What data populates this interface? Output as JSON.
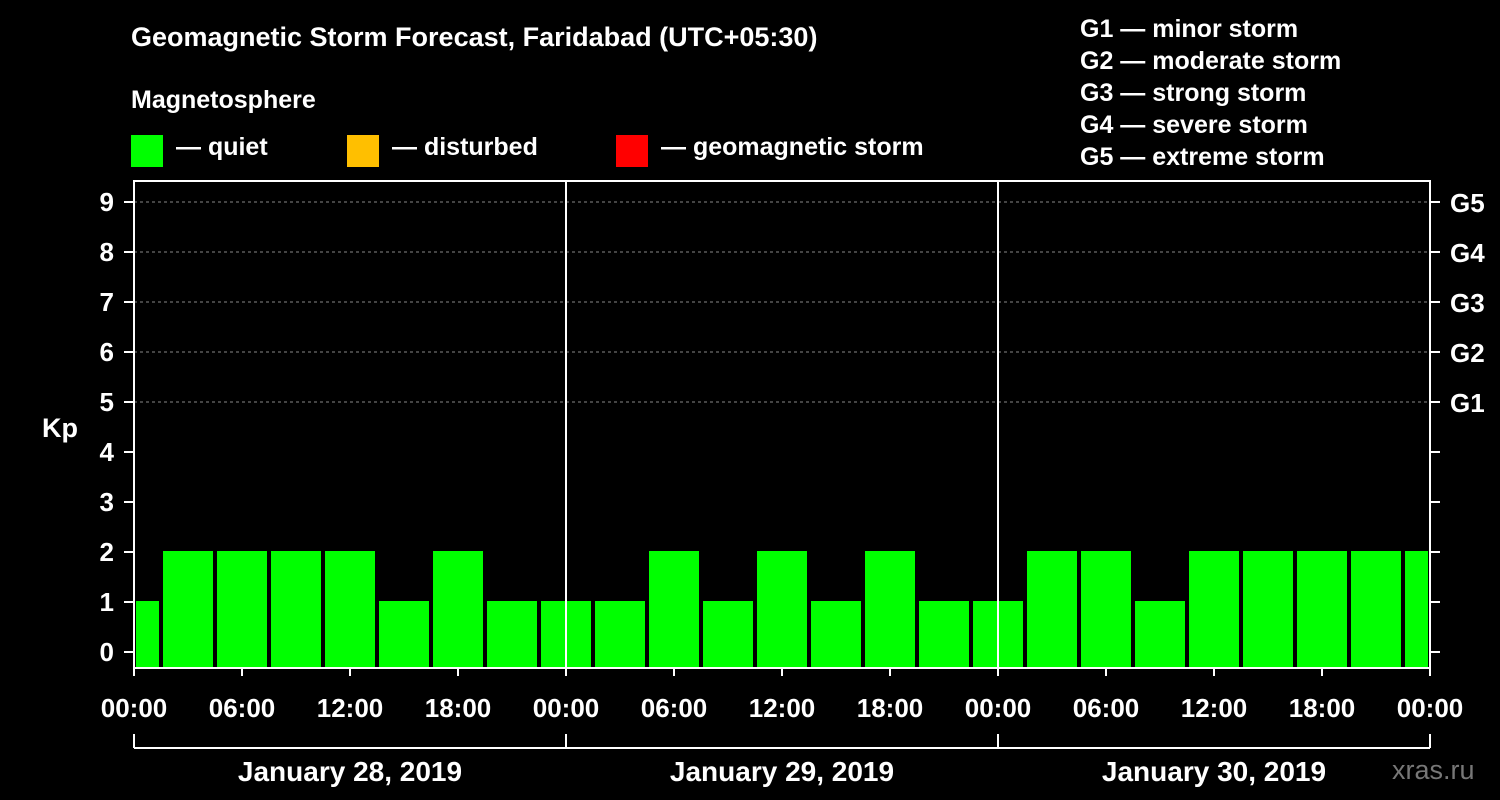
{
  "title": "Geomagnetic Storm Forecast, Faridabad (UTC+05:30)",
  "magnetosphere": {
    "heading": "Magnetosphere",
    "legend": [
      {
        "label": "— quiet",
        "color": "#00ff00"
      },
      {
        "label": "— disturbed",
        "color": "#ffbf00"
      },
      {
        "label": "— geomagnetic storm",
        "color": "#ff0000"
      }
    ]
  },
  "g_scale": [
    "G1 — minor storm",
    "G2 — moderate storm",
    "G3 — strong storm",
    "G4 — severe storm",
    "G5 — extreme storm"
  ],
  "watermark": "xras.ru",
  "chart_data": {
    "type": "bar",
    "title": "Geomagnetic Storm Forecast, Faridabad (UTC+05:30)",
    "ylabel": "Kp",
    "ylim": [
      0,
      9
    ],
    "yticks": [
      "0",
      "1",
      "2",
      "3",
      "4",
      "5",
      "6",
      "7",
      "8",
      "9"
    ],
    "right_axis": [
      {
        "kp": 5,
        "label": "G1"
      },
      {
        "kp": 6,
        "label": "G2"
      },
      {
        "kp": 7,
        "label": "G3"
      },
      {
        "kp": 8,
        "label": "G4"
      },
      {
        "kp": 9,
        "label": "G5"
      }
    ],
    "x_range_hours": [
      0,
      72
    ],
    "xtick_labels": [
      "00:00",
      "06:00",
      "12:00",
      "18:00",
      "00:00",
      "06:00",
      "12:00",
      "18:00",
      "00:00",
      "06:00",
      "12:00",
      "18:00",
      "00:00"
    ],
    "xtick_hours": [
      0,
      6,
      12,
      18,
      24,
      30,
      36,
      42,
      48,
      54,
      60,
      66,
      72
    ],
    "days": [
      "January 28, 2019",
      "January 29, 2019",
      "January 30, 2019"
    ],
    "grid": "dashed at Kp 5-9",
    "bars": [
      {
        "start": 0,
        "end": 1.5,
        "kp": 1,
        "status": "quiet"
      },
      {
        "start": 1.5,
        "end": 4.5,
        "kp": 2,
        "status": "quiet"
      },
      {
        "start": 4.5,
        "end": 7.5,
        "kp": 2,
        "status": "quiet"
      },
      {
        "start": 7.5,
        "end": 10.5,
        "kp": 2,
        "status": "quiet"
      },
      {
        "start": 10.5,
        "end": 13.5,
        "kp": 2,
        "status": "quiet"
      },
      {
        "start": 13.5,
        "end": 16.5,
        "kp": 1,
        "status": "quiet"
      },
      {
        "start": 16.5,
        "end": 19.5,
        "kp": 2,
        "status": "quiet"
      },
      {
        "start": 19.5,
        "end": 22.5,
        "kp": 1,
        "status": "quiet"
      },
      {
        "start": 22.5,
        "end": 25.5,
        "kp": 1,
        "status": "quiet"
      },
      {
        "start": 25.5,
        "end": 28.5,
        "kp": 1,
        "status": "quiet"
      },
      {
        "start": 28.5,
        "end": 31.5,
        "kp": 2,
        "status": "quiet"
      },
      {
        "start": 31.5,
        "end": 34.5,
        "kp": 1,
        "status": "quiet"
      },
      {
        "start": 34.5,
        "end": 37.5,
        "kp": 2,
        "status": "quiet"
      },
      {
        "start": 37.5,
        "end": 40.5,
        "kp": 1,
        "status": "quiet"
      },
      {
        "start": 40.5,
        "end": 43.5,
        "kp": 2,
        "status": "quiet"
      },
      {
        "start": 43.5,
        "end": 46.5,
        "kp": 1,
        "status": "quiet"
      },
      {
        "start": 46.5,
        "end": 49.5,
        "kp": 1,
        "status": "quiet"
      },
      {
        "start": 49.5,
        "end": 52.5,
        "kp": 2,
        "status": "quiet"
      },
      {
        "start": 52.5,
        "end": 55.5,
        "kp": 2,
        "status": "quiet"
      },
      {
        "start": 55.5,
        "end": 58.5,
        "kp": 1,
        "status": "quiet"
      },
      {
        "start": 58.5,
        "end": 61.5,
        "kp": 2,
        "status": "quiet"
      },
      {
        "start": 61.5,
        "end": 64.5,
        "kp": 2,
        "status": "quiet"
      },
      {
        "start": 64.5,
        "end": 67.5,
        "kp": 2,
        "status": "quiet"
      },
      {
        "start": 67.5,
        "end": 70.5,
        "kp": 2,
        "status": "quiet"
      },
      {
        "start": 70.5,
        "end": 72,
        "kp": 2,
        "status": "quiet"
      }
    ]
  }
}
